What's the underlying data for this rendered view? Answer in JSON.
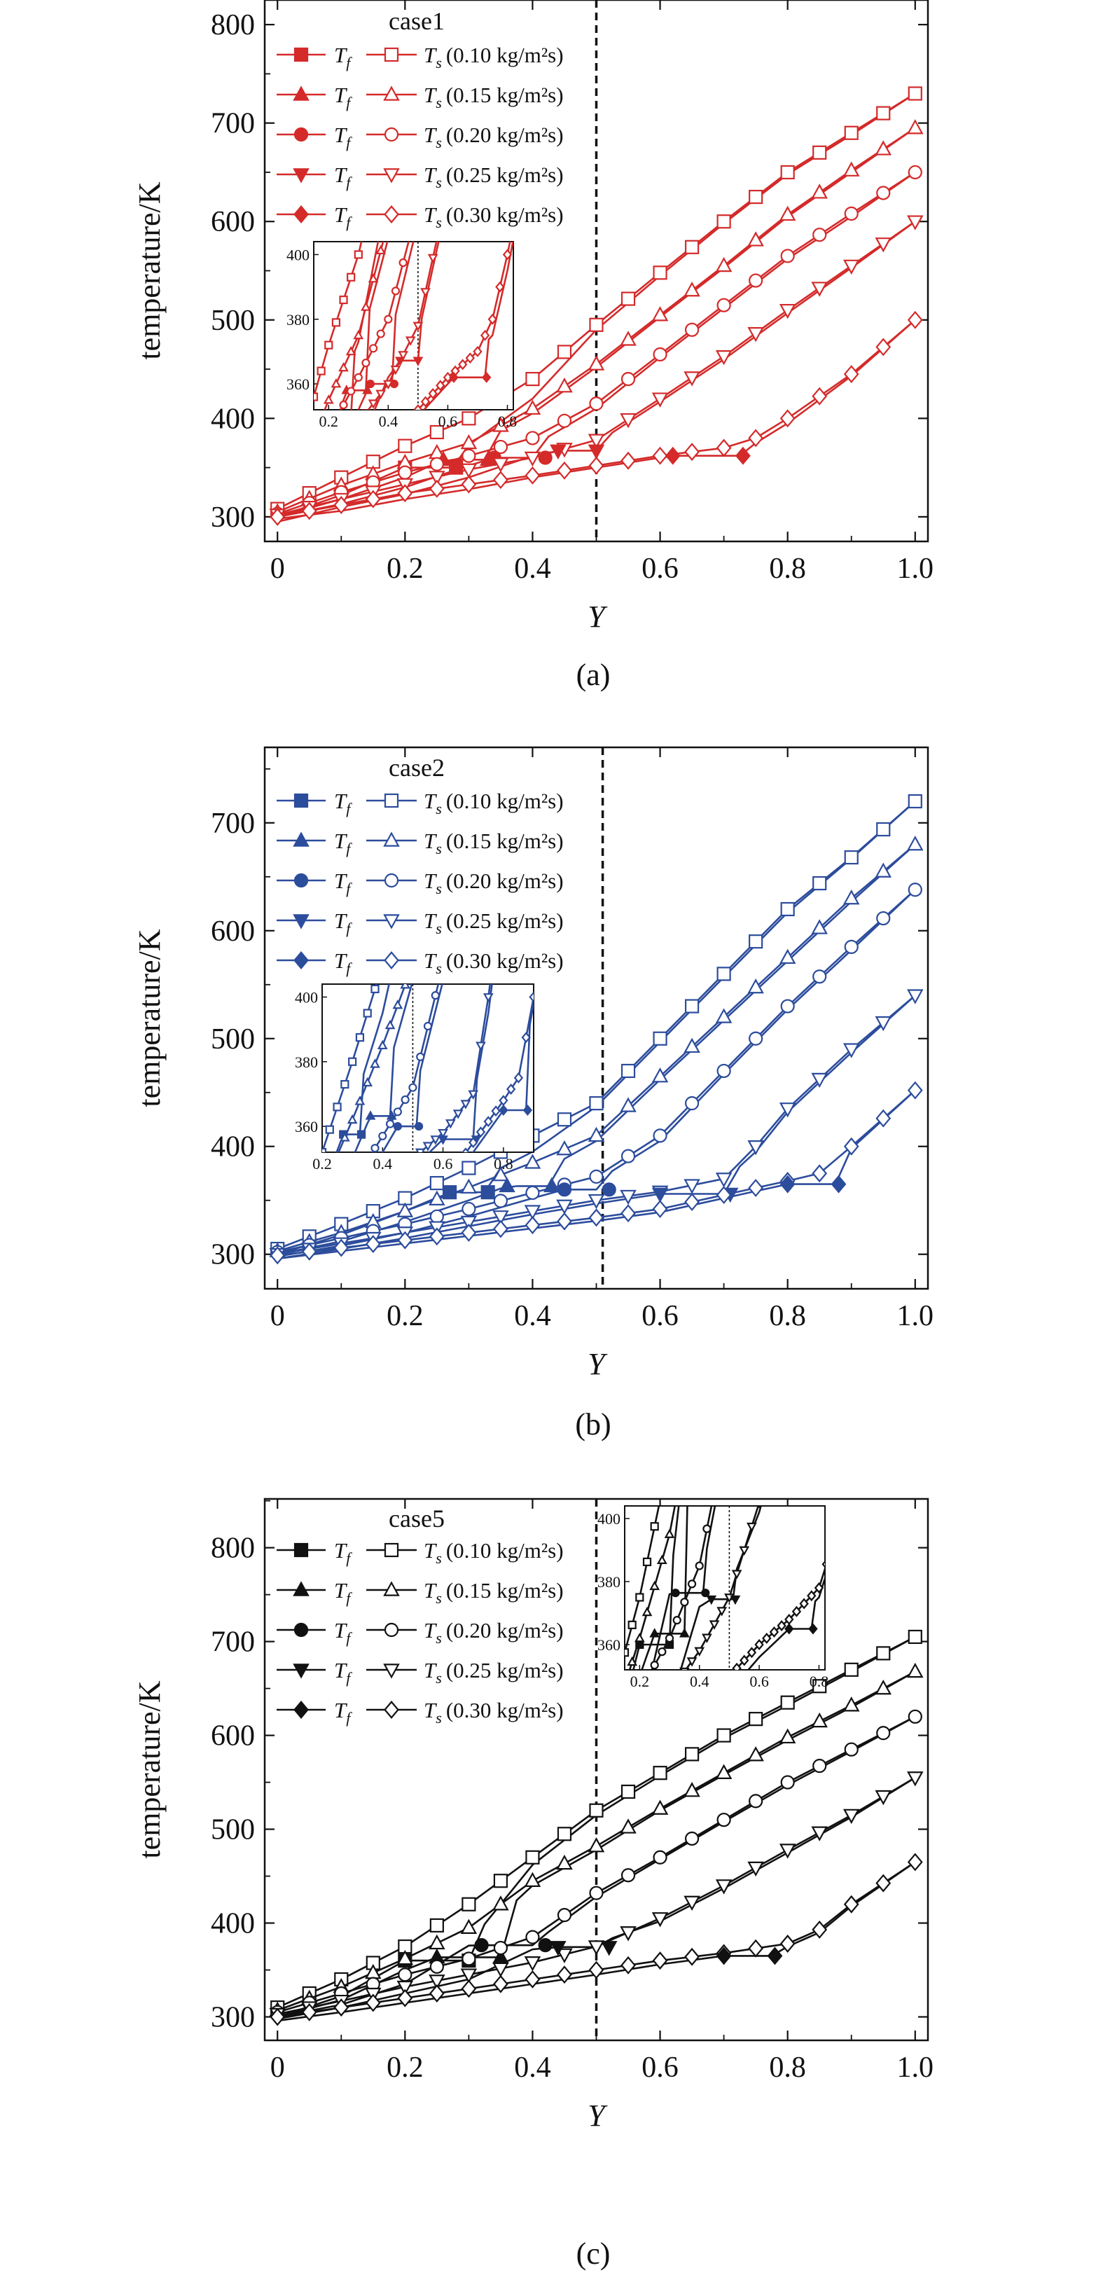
{
  "colors": {
    "case1": "#d42a2a",
    "case2": "#2c4c9c",
    "case5": "#111111"
  },
  "legend": {
    "fluid_symbol": "T",
    "fluid_sub": "f",
    "solid_symbol": "T",
    "solid_sub": "s",
    "flux_labels": [
      "(0.10 kg/m²s)",
      "(0.15 kg/m²s)",
      "(0.20 kg/m²s)",
      "(0.25 kg/m²s)",
      "(0.30 kg/m²s)"
    ]
  },
  "chart_data": [
    {
      "type": "line",
      "panel_label": "(a)",
      "case_label": "case1",
      "xlabel": "Y",
      "ylabel": "temperature/K",
      "xlim": [
        -0.02,
        1.02
      ],
      "ylim": [
        275,
        825
      ],
      "xticks": [
        "0",
        "0.2",
        "0.4",
        "0.6",
        "0.8",
        "1.0"
      ],
      "yticks": [
        "300",
        "400",
        "500",
        "600",
        "700",
        "800"
      ],
      "vline_x": 0.5,
      "inset": {
        "xlim": [
          0.15,
          0.82
        ],
        "ylim": [
          352,
          404
        ],
        "xticks": [
          "0.2",
          "0.4",
          "0.6",
          "0.8"
        ],
        "yticks": [
          "360",
          "380",
          "400"
        ],
        "vline_x": 0.5
      },
      "series": [
        {
          "flux": "(0.10 kg/m²s)",
          "marker": "square",
          "x": [
            0,
            0.1,
            0.2,
            0.3,
            0.4,
            0.5,
            0.6,
            0.7,
            0.8,
            0.9,
            1.0
          ],
          "solid": [
            308,
            340,
            372,
            400,
            440,
            495,
            548,
            600,
            650,
            690,
            730
          ],
          "fluid": [
            300,
            322,
            350,
            373,
            420,
            490,
            545,
            598,
            648,
            688,
            730
          ],
          "fluid_flat": [
            0.2,
            0.28
          ]
        },
        {
          "flux": "(0.15 kg/m²s)",
          "marker": "triangle-up",
          "x": [
            0,
            0.1,
            0.2,
            0.3,
            0.4,
            0.5,
            0.6,
            0.7,
            0.8,
            0.9,
            1.0
          ],
          "solid": [
            305,
            332,
            355,
            375,
            410,
            455,
            505,
            555,
            607,
            652,
            695
          ],
          "fluid": [
            300,
            318,
            340,
            370,
            405,
            452,
            503,
            553,
            605,
            650,
            695
          ],
          "fluid_flat": [
            0.26,
            0.33
          ]
        },
        {
          "flux": "(0.20 kg/m²s)",
          "marker": "circle",
          "x": [
            0,
            0.1,
            0.2,
            0.3,
            0.4,
            0.5,
            0.6,
            0.7,
            0.8,
            0.9,
            1.0
          ],
          "solid": [
            303,
            325,
            345,
            362,
            380,
            415,
            465,
            515,
            565,
            608,
            650
          ],
          "fluid": [
            300,
            313,
            330,
            352,
            372,
            410,
            462,
            512,
            562,
            605,
            650
          ],
          "fluid_flat": [
            0.34,
            0.42
          ]
        },
        {
          "flux": "(0.25 kg/m²s)",
          "marker": "triangle-down",
          "x": [
            0,
            0.1,
            0.2,
            0.3,
            0.4,
            0.5,
            0.6,
            0.7,
            0.8,
            0.9,
            1.0
          ],
          "solid": [
            302,
            318,
            333,
            348,
            360,
            378,
            420,
            463,
            510,
            555,
            600
          ],
          "fluid": [
            295,
            310,
            323,
            340,
            362,
            375,
            417,
            460,
            507,
            553,
            600
          ],
          "fluid_flat": [
            0.44,
            0.5
          ]
        },
        {
          "flux": "(0.30 kg/m²s)",
          "marker": "diamond",
          "x": [
            0,
            0.1,
            0.2,
            0.3,
            0.4,
            0.5,
            0.6,
            0.7,
            0.75,
            0.8,
            0.9,
            1.0
          ],
          "solid": [
            300,
            312,
            324,
            333,
            342,
            352,
            362,
            370,
            380,
            400,
            445,
            500
          ],
          "fluid": [
            298,
            306,
            318,
            328,
            340,
            350,
            360,
            370,
            375,
            395,
            443,
            500
          ],
          "fluid_flat": [
            0.62,
            0.73
          ]
        }
      ]
    },
    {
      "type": "line",
      "panel_label": "(b)",
      "case_label": "case2",
      "xlabel": "Y",
      "ylabel": "temperature/K",
      "xlim": [
        -0.02,
        1.02
      ],
      "ylim": [
        268,
        770
      ],
      "xticks": [
        "0",
        "0.2",
        "0.4",
        "0.6",
        "0.8",
        "1.0"
      ],
      "yticks": [
        "300",
        "400",
        "500",
        "600",
        "700"
      ],
      "vline_x": 0.51,
      "inset": {
        "xlim": [
          0.2,
          0.9
        ],
        "ylim": [
          352,
          404
        ],
        "xticks": [
          "0.2",
          "0.4",
          "0.6",
          "0.8"
        ],
        "yticks": [
          "360",
          "380",
          "400"
        ],
        "vline_x": 0.5
      },
      "series": [
        {
          "flux": "(0.10 kg/m²s)",
          "marker": "square",
          "x": [
            0,
            0.1,
            0.2,
            0.3,
            0.4,
            0.5,
            0.6,
            0.7,
            0.8,
            0.9,
            1.0
          ],
          "solid": [
            305,
            328,
            352,
            380,
            410,
            440,
            500,
            560,
            620,
            668,
            720
          ],
          "fluid": [
            300,
            318,
            340,
            365,
            395,
            437,
            497,
            557,
            617,
            667,
            720
          ],
          "fluid_flat": [
            0.27,
            0.33
          ]
        },
        {
          "flux": "(0.15 kg/m²s)",
          "marker": "triangle-up",
          "x": [
            0,
            0.1,
            0.2,
            0.3,
            0.4,
            0.5,
            0.6,
            0.7,
            0.8,
            0.9,
            1.0
          ],
          "solid": [
            303,
            320,
            340,
            362,
            385,
            410,
            465,
            520,
            575,
            630,
            680
          ],
          "fluid": [
            300,
            312,
            330,
            350,
            372,
            405,
            462,
            517,
            572,
            627,
            680
          ],
          "fluid_flat": [
            0.36,
            0.43
          ]
        },
        {
          "flux": "(0.20 kg/m²s)",
          "marker": "circle",
          "x": [
            0,
            0.1,
            0.2,
            0.3,
            0.4,
            0.5,
            0.6,
            0.7,
            0.8,
            0.9,
            1.0
          ],
          "solid": [
            302,
            315,
            328,
            342,
            357,
            372,
            410,
            470,
            530,
            585,
            638
          ],
          "fluid": [
            298,
            308,
            320,
            335,
            352,
            368,
            405,
            467,
            527,
            582,
            638
          ],
          "fluid_flat": [
            0.45,
            0.52
          ]
        },
        {
          "flux": "(0.25 kg/m²s)",
          "marker": "triangle-down",
          "x": [
            0,
            0.1,
            0.2,
            0.3,
            0.4,
            0.5,
            0.6,
            0.7,
            0.75,
            0.8,
            0.9,
            1.0
          ],
          "solid": [
            300,
            310,
            320,
            330,
            340,
            350,
            358,
            370,
            400,
            435,
            490,
            540
          ],
          "fluid": [
            296,
            305,
            315,
            326,
            337,
            347,
            356,
            368,
            395,
            432,
            487,
            540
          ],
          "fluid_flat": [
            0.6,
            0.71
          ]
        },
        {
          "flux": "(0.30 kg/m²s)",
          "marker": "diamond",
          "x": [
            0,
            0.1,
            0.2,
            0.3,
            0.4,
            0.5,
            0.6,
            0.7,
            0.8,
            0.85,
            0.9,
            1.0
          ],
          "solid": [
            299,
            306,
            313,
            320,
            327,
            334,
            342,
            355,
            368,
            375,
            400,
            452
          ],
          "fluid": [
            296,
            303,
            310,
            317,
            324,
            331,
            339,
            352,
            365,
            372,
            398,
            452
          ],
          "fluid_flat": [
            0.8,
            0.88
          ]
        }
      ]
    },
    {
      "type": "line",
      "panel_label": "(c)",
      "case_label": "case5",
      "xlabel": "Y",
      "ylabel": "temperature/K",
      "xlim": [
        -0.02,
        1.02
      ],
      "ylim": [
        275,
        852
      ],
      "xticks": [
        "0",
        "0.2",
        "0.4",
        "0.6",
        "0.8",
        "1.0"
      ],
      "yticks": [
        "300",
        "400",
        "500",
        "600",
        "700",
        "800"
      ],
      "vline_x": 0.5,
      "inset": {
        "xlim": [
          0.15,
          0.82
        ],
        "ylim": [
          352,
          404
        ],
        "xticks": [
          "0.2",
          "0.4",
          "0.6",
          "0.8"
        ],
        "yticks": [
          "360",
          "380",
          "400"
        ],
        "vline_x": 0.5
      },
      "series": [
        {
          "flux": "(0.10 kg/m²s)",
          "marker": "square",
          "x": [
            0,
            0.1,
            0.2,
            0.3,
            0.4,
            0.5,
            0.6,
            0.7,
            0.8,
            0.9,
            1.0
          ],
          "solid": [
            310,
            340,
            375,
            420,
            470,
            520,
            560,
            600,
            635,
            670,
            705
          ],
          "fluid": [
            300,
            322,
            360,
            378,
            462,
            515,
            557,
            597,
            632,
            668,
            705
          ],
          "fluid_flat": [
            0.2,
            0.3
          ]
        },
        {
          "flux": "(0.15 kg/m²s)",
          "marker": "triangle-up",
          "x": [
            0,
            0.1,
            0.2,
            0.3,
            0.4,
            0.5,
            0.6,
            0.7,
            0.8,
            0.9,
            1.0
          ],
          "solid": [
            307,
            332,
            362,
            395,
            445,
            482,
            522,
            560,
            598,
            632,
            668
          ],
          "fluid": [
            300,
            318,
            350,
            377,
            440,
            478,
            520,
            558,
            595,
            630,
            668
          ],
          "fluid_flat": [
            0.25,
            0.35
          ]
        },
        {
          "flux": "(0.20 kg/m²s)",
          "marker": "circle",
          "x": [
            0,
            0.1,
            0.2,
            0.3,
            0.4,
            0.5,
            0.6,
            0.7,
            0.8,
            0.9,
            1.0
          ],
          "solid": [
            305,
            325,
            345,
            362,
            385,
            432,
            470,
            510,
            550,
            585,
            620
          ],
          "fluid": [
            300,
            313,
            335,
            376,
            378,
            428,
            468,
            508,
            547,
            583,
            620
          ],
          "fluid_flat": [
            0.32,
            0.42
          ]
        },
        {
          "flux": "(0.25 kg/m²s)",
          "marker": "triangle-down",
          "x": [
            0,
            0.1,
            0.2,
            0.3,
            0.4,
            0.5,
            0.6,
            0.7,
            0.8,
            0.9,
            1.0
          ],
          "solid": [
            303,
            317,
            332,
            345,
            358,
            375,
            405,
            440,
            478,
            515,
            555
          ],
          "fluid": [
            298,
            310,
            325,
            340,
            372,
            378,
            402,
            437,
            475,
            513,
            555
          ],
          "fluid_flat": [
            0.44,
            0.52
          ]
        },
        {
          "flux": "(0.30 kg/m²s)",
          "marker": "diamond",
          "x": [
            0,
            0.1,
            0.2,
            0.3,
            0.4,
            0.5,
            0.6,
            0.7,
            0.8,
            0.85,
            0.9,
            1.0
          ],
          "solid": [
            300,
            310,
            320,
            330,
            340,
            350,
            360,
            368,
            378,
            393,
            420,
            465
          ],
          "fluid": [
            296,
            305,
            315,
            325,
            335,
            345,
            356,
            365,
            375,
            390,
            418,
            465
          ],
          "fluid_flat": [
            0.7,
            0.78
          ]
        }
      ]
    }
  ]
}
